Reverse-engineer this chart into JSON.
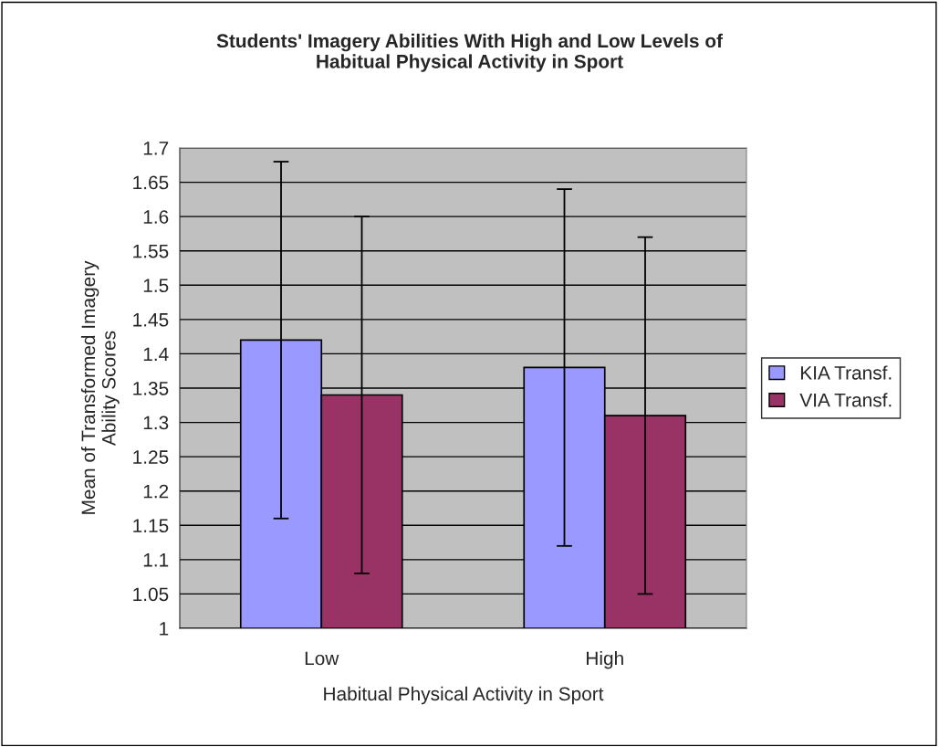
{
  "chart_data": {
    "type": "bar",
    "title": "Students' Imagery Abilities With High and Low Levels of\nHabitual Physical Activity in Sport",
    "xlabel": "Habitual Physical Activity in Sport",
    "ylabel": "Mean of Transformed Imagery\nAbility Scores",
    "categories": [
      "Low",
      "High"
    ],
    "series": [
      {
        "name": "KIA Transf.",
        "color": "#9999ff",
        "values": [
          1.42,
          1.38
        ],
        "errors": [
          0.26,
          0.26
        ]
      },
      {
        "name": "VIA Transf.",
        "color": "#993366",
        "values": [
          1.34,
          1.31
        ],
        "errors": [
          0.26,
          0.26
        ]
      }
    ],
    "ylim": [
      1,
      1.7
    ],
    "yticks": [
      1,
      1.05,
      1.1,
      1.15,
      1.2,
      1.25,
      1.3,
      1.35,
      1.4,
      1.45,
      1.5,
      1.55,
      1.6,
      1.65,
      1.7
    ],
    "grid": "y",
    "legend": "right"
  }
}
